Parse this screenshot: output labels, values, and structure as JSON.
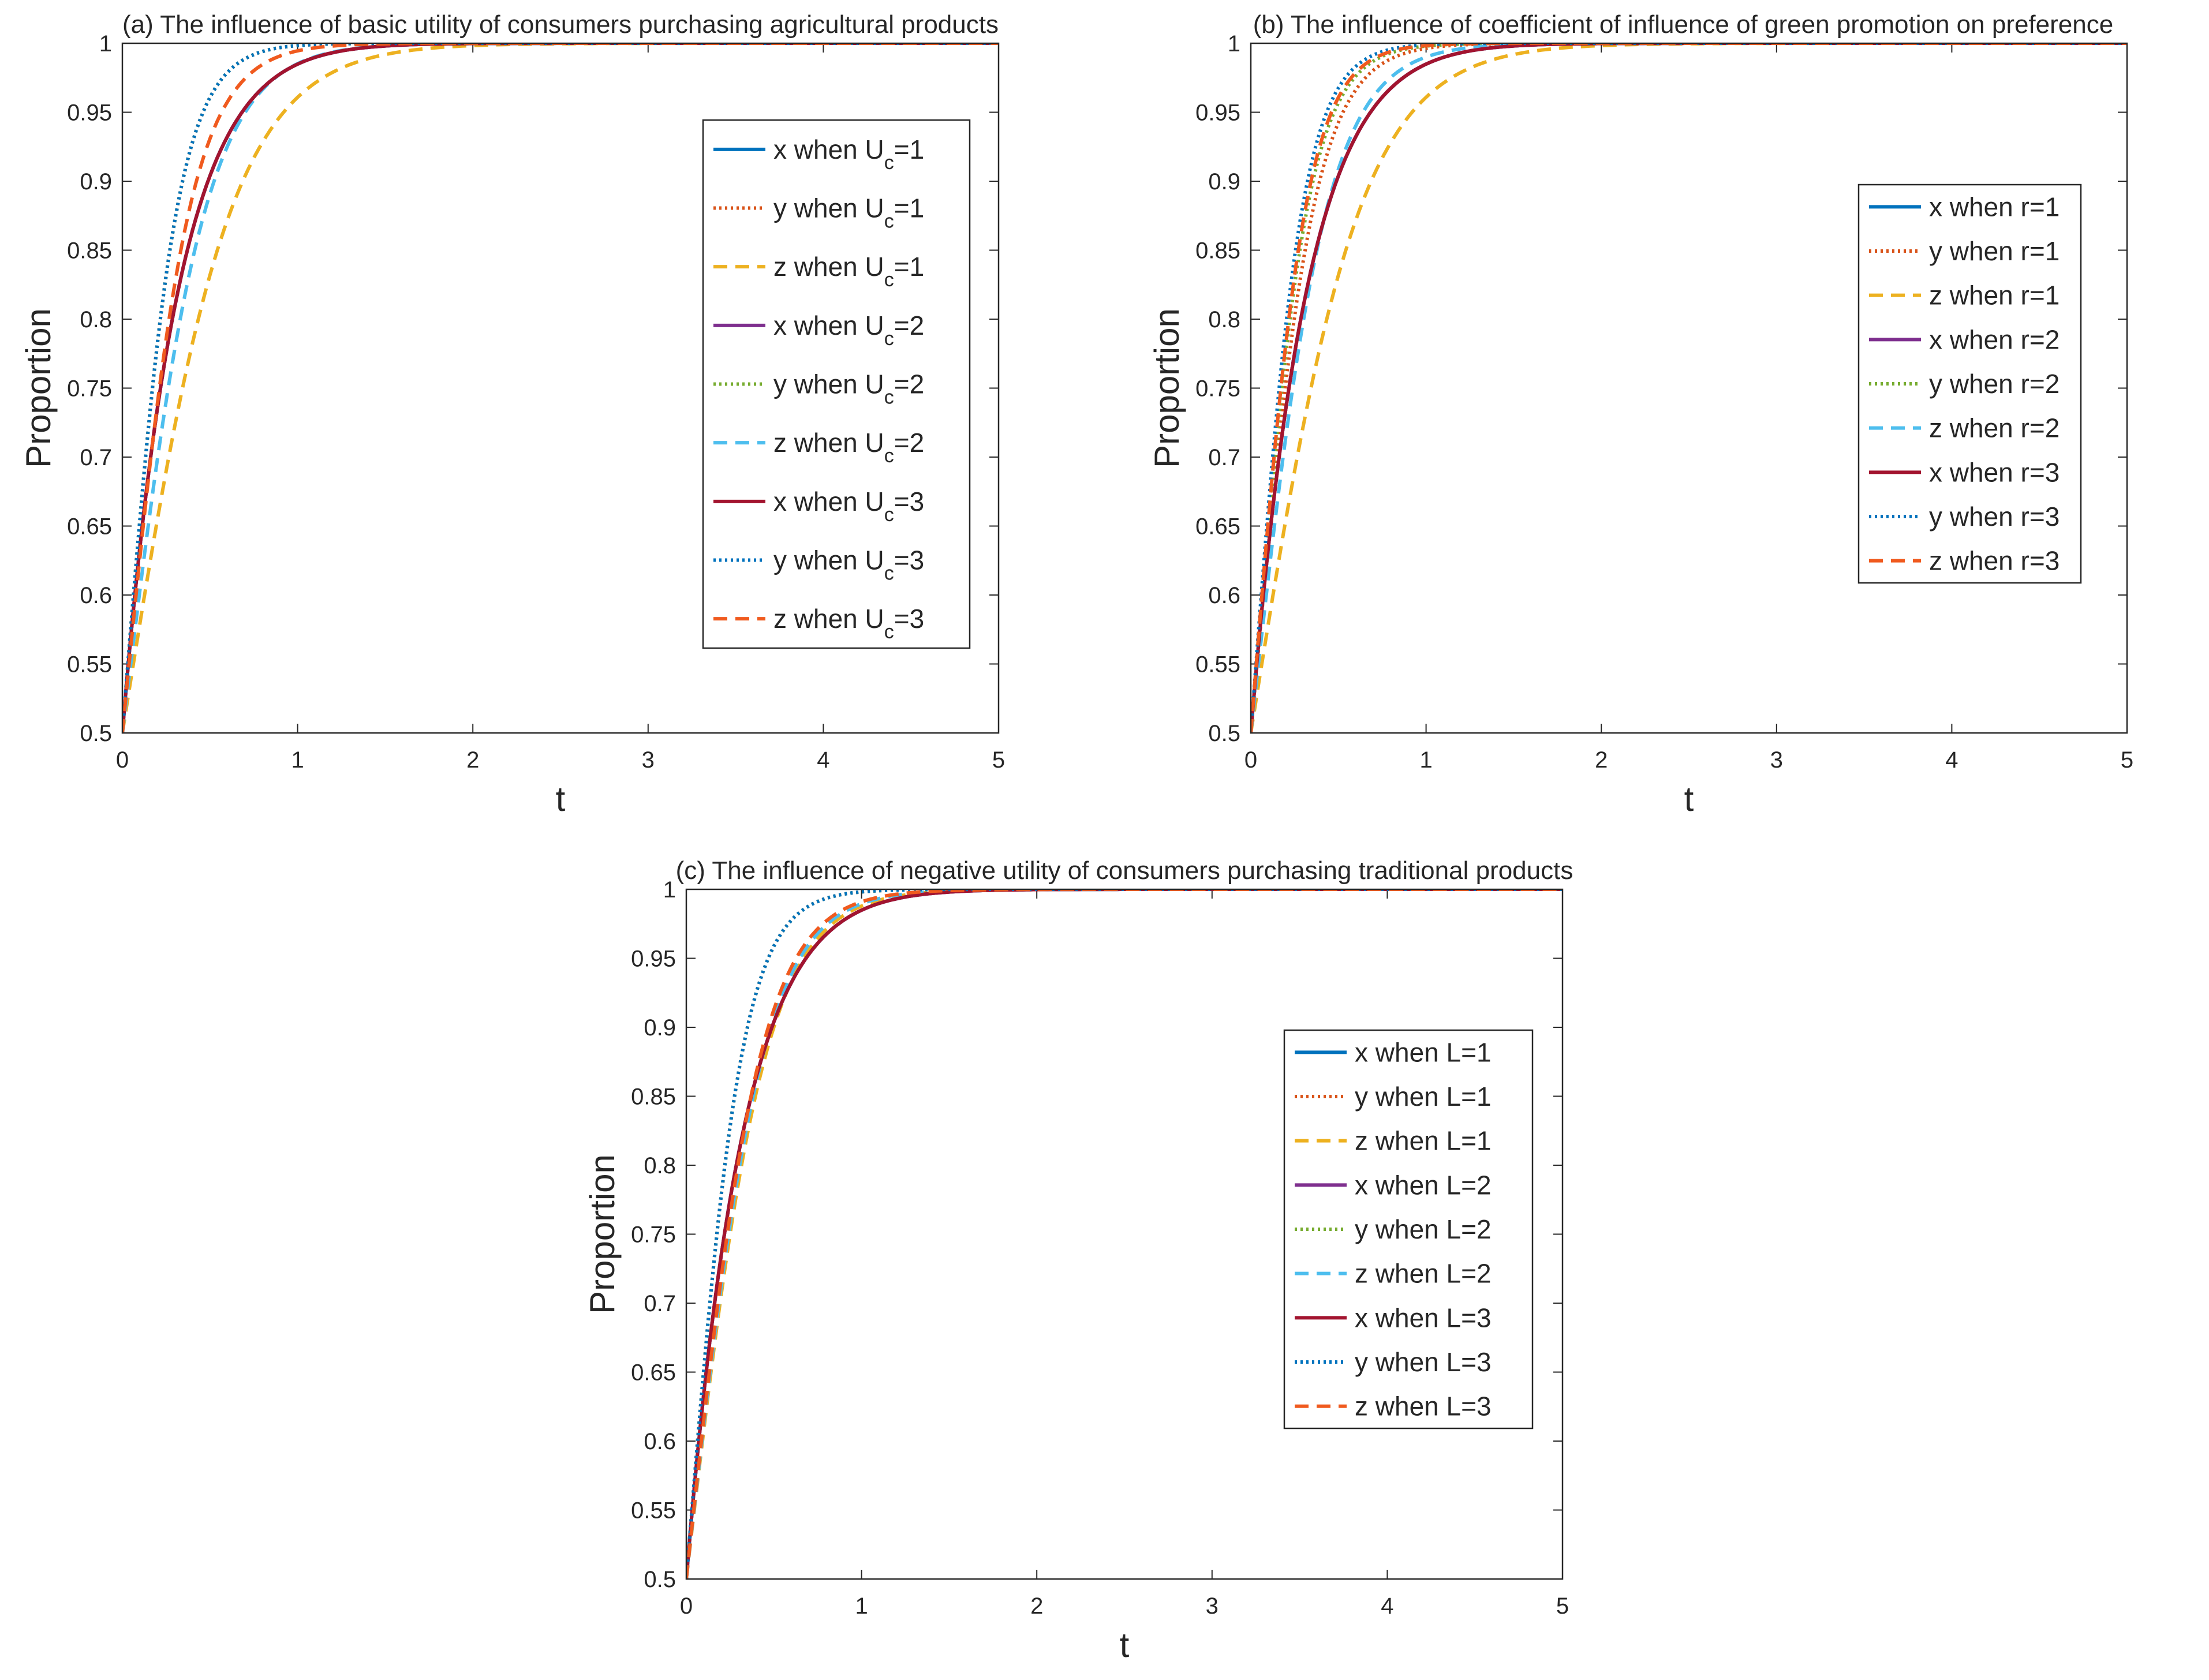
{
  "figure": {
    "description_panels": 3
  },
  "colors": {
    "blue": "#0072BD",
    "orange": "#D95319",
    "yellow": "#EDB120",
    "purple": "#7E2F8E",
    "green": "#77AC30",
    "cyan": "#4DBEEE",
    "red": "#A2142F",
    "blue2": "#0072BD",
    "orange2": "#F05A1E"
  },
  "chart_data": [
    {
      "id": "a",
      "type": "line",
      "title": "(a) The influence of basic utility of consumers purchasing agricultural products",
      "xlabel": "t",
      "ylabel": "Proportion",
      "xlim": [
        0,
        5
      ],
      "ylim": [
        0.5,
        1
      ],
      "xticks": [
        "0",
        "1",
        "2",
        "3",
        "4",
        "5"
      ],
      "yticks": [
        "0.5",
        "0.55",
        "0.6",
        "0.65",
        "0.7",
        "0.75",
        "0.8",
        "0.85",
        "0.9",
        "0.95",
        "1"
      ],
      "legend_position": "right-upper",
      "legend_subscript": "c",
      "series": [
        {
          "var": "x",
          "label_pre": "x when U",
          "label_post": "=1",
          "color": "#0072BD",
          "dash": "solid",
          "model": {
            "k": 0.5,
            "a": 5.0,
            "b": 2.2,
            "c": 0.0
          }
        },
        {
          "var": "y",
          "label_pre": "y when U",
          "label_post": "=1",
          "color": "#D95319",
          "dash": "dotted",
          "model": {
            "k": 0.5,
            "a": 0.5,
            "b": 0.5,
            "c": 6.4
          }
        },
        {
          "var": "z",
          "label_pre": "z when U",
          "label_post": "=1",
          "color": "#EDB120",
          "dash": "dashed",
          "model": {
            "k": 0.5,
            "a": 2.0,
            "b": 0.5,
            "c": 3.2
          }
        },
        {
          "var": "x",
          "label_pre": "x when U",
          "label_post": "=2",
          "color": "#7E2F8E",
          "dash": "solid",
          "model": {
            "k": 0.5,
            "a": 5.0,
            "b": 2.2,
            "c": 0.0
          }
        },
        {
          "var": "y",
          "label_pre": "y when U",
          "label_post": "=2",
          "color": "#77AC30",
          "dash": "dotted",
          "model": {
            "k": 0.5,
            "a": 0.5,
            "b": 0.5,
            "c": 6.4
          }
        },
        {
          "var": "z",
          "label_pre": "z when U",
          "label_post": "=2",
          "color": "#4DBEEE",
          "dash": "dashed",
          "model": {
            "k": 0.5,
            "a": 2.0,
            "b": 0.5,
            "c": 4.2
          }
        },
        {
          "var": "x",
          "label_pre": "x when U",
          "label_post": "=3",
          "color": "#A2142F",
          "dash": "solid",
          "model": {
            "k": 0.5,
            "a": 5.0,
            "b": 2.2,
            "c": 0.0
          }
        },
        {
          "var": "y",
          "label_pre": "y when U",
          "label_post": "=3",
          "color": "#0072BD",
          "dash": "dotted",
          "model": {
            "k": 0.5,
            "a": 0.5,
            "b": 0.5,
            "c": 6.4
          }
        },
        {
          "var": "z",
          "label_pre": "z when U",
          "label_post": "=3",
          "color": "#F05A1E",
          "dash": "dashed",
          "model": {
            "k": 0.5,
            "a": 2.0,
            "b": 0.5,
            "c": 5.2
          }
        }
      ]
    },
    {
      "id": "b",
      "type": "line",
      "title": "(b)  The influence of coefficient of influence of green promotion on preference",
      "xlabel": "t",
      "ylabel": "Proportion",
      "xlim": [
        0,
        5
      ],
      "ylim": [
        0.5,
        1
      ],
      "xticks": [
        "0",
        "1",
        "2",
        "3",
        "4",
        "5"
      ],
      "yticks": [
        "0.5",
        "0.55",
        "0.6",
        "0.65",
        "0.7",
        "0.75",
        "0.8",
        "0.85",
        "0.9",
        "0.95",
        "1"
      ],
      "legend_position": "right-middle",
      "legend_subscript": "",
      "series": [
        {
          "var": "x",
          "label_pre": "x when r=1",
          "label_post": "",
          "color": "#0072BD",
          "dash": "solid",
          "model": {
            "k": 0.5,
            "a": 5.0,
            "b": 2.2,
            "c": 0.0
          }
        },
        {
          "var": "y",
          "label_pre": "y when r=1",
          "label_post": "",
          "color": "#D95319",
          "dash": "dotted",
          "model": {
            "k": 0.5,
            "a": 0.5,
            "b": 0.5,
            "c": 5.6
          }
        },
        {
          "var": "z",
          "label_pre": "z when r=1",
          "label_post": "",
          "color": "#EDB120",
          "dash": "dashed",
          "model": {
            "k": 0.5,
            "a": 2.0,
            "b": 0.5,
            "c": 3.2
          }
        },
        {
          "var": "x",
          "label_pre": "x when r=2",
          "label_post": "",
          "color": "#7E2F8E",
          "dash": "solid",
          "model": {
            "k": 0.5,
            "a": 5.0,
            "b": 2.2,
            "c": 0.0
          }
        },
        {
          "var": "y",
          "label_pre": "y when r=2",
          "label_post": "",
          "color": "#77AC30",
          "dash": "dotted",
          "model": {
            "k": 0.5,
            "a": 0.5,
            "b": 0.5,
            "c": 6.2
          }
        },
        {
          "var": "z",
          "label_pre": "z when r=2",
          "label_post": "",
          "color": "#4DBEEE",
          "dash": "dashed",
          "model": {
            "k": 0.5,
            "a": 2.0,
            "b": 0.5,
            "c": 4.6
          }
        },
        {
          "var": "x",
          "label_pre": "x when r=3",
          "label_post": "",
          "color": "#A2142F",
          "dash": "solid",
          "model": {
            "k": 0.5,
            "a": 5.0,
            "b": 2.2,
            "c": 0.0
          }
        },
        {
          "var": "y",
          "label_pre": "y when r=3",
          "label_post": "",
          "color": "#0072BD",
          "dash": "dotted",
          "model": {
            "k": 0.5,
            "a": 0.5,
            "b": 0.5,
            "c": 6.8
          }
        },
        {
          "var": "z",
          "label_pre": "z when r=3",
          "label_post": "",
          "color": "#F05A1E",
          "dash": "dashed",
          "model": {
            "k": 0.5,
            "a": 2.0,
            "b": 0.5,
            "c": 6.4
          }
        }
      ]
    },
    {
      "id": "c",
      "type": "line",
      "title": "(c)  The influence of negative utility of consumers purchasing traditional products",
      "xlabel": "t",
      "ylabel": "Proportion",
      "xlim": [
        0,
        5
      ],
      "ylim": [
        0.5,
        1
      ],
      "xticks": [
        "0",
        "1",
        "2",
        "3",
        "4",
        "5"
      ],
      "yticks": [
        "0.5",
        "0.55",
        "0.6",
        "0.65",
        "0.7",
        "0.75",
        "0.8",
        "0.85",
        "0.9",
        "0.95",
        "1"
      ],
      "legend_position": "right-middle",
      "legend_subscript": "",
      "series": [
        {
          "var": "x",
          "label_pre": "x when L=1",
          "label_post": "",
          "color": "#0072BD",
          "dash": "solid",
          "model": {
            "k": 0.5,
            "a": 5.0,
            "b": 2.2,
            "c": 0.0
          }
        },
        {
          "var": "y",
          "label_pre": "y when L=1",
          "label_post": "",
          "color": "#D95319",
          "dash": "dotted",
          "model": {
            "k": 0.5,
            "a": 0.5,
            "b": 0.5,
            "c": 6.3
          }
        },
        {
          "var": "z",
          "label_pre": "z when L=1",
          "label_post": "",
          "color": "#EDB120",
          "dash": "dashed",
          "model": {
            "k": 0.5,
            "a": 2.0,
            "b": 0.5,
            "c": 4.4
          }
        },
        {
          "var": "x",
          "label_pre": "x when L=2",
          "label_post": "",
          "color": "#7E2F8E",
          "dash": "solid",
          "model": {
            "k": 0.5,
            "a": 5.0,
            "b": 2.2,
            "c": 0.0
          }
        },
        {
          "var": "y",
          "label_pre": "y when L=2",
          "label_post": "",
          "color": "#77AC30",
          "dash": "dotted",
          "model": {
            "k": 0.5,
            "a": 0.5,
            "b": 0.5,
            "c": 6.3
          }
        },
        {
          "var": "z",
          "label_pre": "z when L=2",
          "label_post": "",
          "color": "#4DBEEE",
          "dash": "dashed",
          "model": {
            "k": 0.5,
            "a": 2.0,
            "b": 0.5,
            "c": 4.55
          }
        },
        {
          "var": "x",
          "label_pre": "x when L=3",
          "label_post": "",
          "color": "#A2142F",
          "dash": "solid",
          "model": {
            "k": 0.5,
            "a": 5.0,
            "b": 2.2,
            "c": 0.0
          }
        },
        {
          "var": "y",
          "label_pre": "y when L=3",
          "label_post": "",
          "color": "#0072BD",
          "dash": "dotted",
          "model": {
            "k": 0.5,
            "a": 0.5,
            "b": 0.5,
            "c": 6.3
          }
        },
        {
          "var": "z",
          "label_pre": "z when L=3",
          "label_post": "",
          "color": "#F05A1E",
          "dash": "dashed",
          "model": {
            "k": 0.5,
            "a": 2.0,
            "b": 0.5,
            "c": 4.7
          }
        }
      ]
    }
  ]
}
